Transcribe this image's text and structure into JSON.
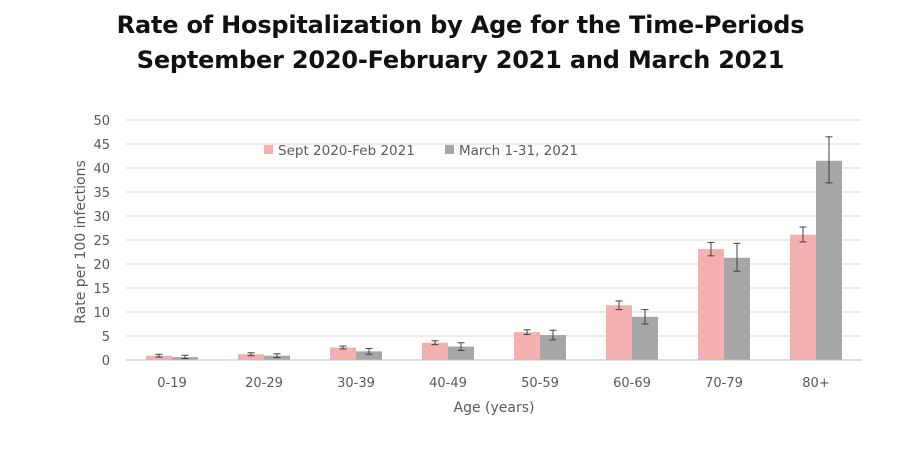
{
  "title_line1": "Rate of Hospitalization by Age for the Time-Periods",
  "title_line2": "September 2020-February 2021 and March 2021",
  "chart_data": {
    "type": "bar",
    "title": "Rate of Hospitalization by Age for the Time-Periods September 2020-February 2021 and March 2021",
    "xlabel": "Age (years)",
    "ylabel": "Rate per 100 infections",
    "ylim": [
      0,
      50
    ],
    "yticks": [
      0,
      5,
      10,
      15,
      20,
      25,
      30,
      35,
      40,
      45,
      50
    ],
    "grid": true,
    "legend_position": "top-center",
    "categories": [
      "0-19",
      "20-29",
      "30-39",
      "40-49",
      "50-59",
      "60-69",
      "70-79",
      "80+"
    ],
    "series": [
      {
        "name": "Sept 2020-Feb 2021",
        "color": "#f4b0ae",
        "values": [
          0.9,
          1.2,
          2.6,
          3.6,
          5.8,
          11.4,
          23.1,
          26.1
        ],
        "error_low": [
          0.6,
          0.9,
          2.3,
          3.2,
          5.3,
          10.5,
          21.7,
          24.6
        ],
        "error_high": [
          1.2,
          1.5,
          2.9,
          4.0,
          6.3,
          12.3,
          24.5,
          27.7
        ]
      },
      {
        "name": "March 1-31, 2021",
        "color": "#a6a6a6",
        "values": [
          0.6,
          0.9,
          1.8,
          2.8,
          5.2,
          9.0,
          21.3,
          41.5
        ],
        "error_low": [
          0.3,
          0.5,
          1.2,
          2.0,
          4.2,
          7.5,
          18.5,
          36.9
        ],
        "error_high": [
          1.0,
          1.3,
          2.4,
          3.6,
          6.2,
          10.5,
          24.3,
          46.5
        ]
      }
    ]
  }
}
